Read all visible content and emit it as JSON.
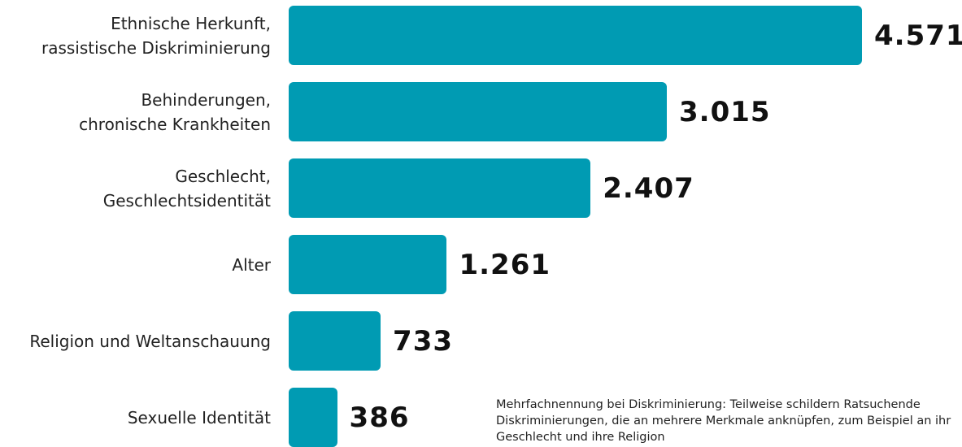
{
  "chart_data": {
    "type": "bar",
    "orientation": "horizontal",
    "categories": [
      "Ethnische Herkunft,\nrassistische Diskriminierung",
      "Behinderungen,\nchronische Krankheiten",
      "Geschlecht,\nGeschlechtsidentität",
      "Alter",
      "Religion und Weltanschauung",
      "Sexuelle Identität"
    ],
    "values": [
      4571,
      3015,
      2407,
      1261,
      733,
      386
    ],
    "value_labels": [
      "4.571",
      "3.015",
      "2.407",
      "1.261",
      "733",
      "386"
    ],
    "color": "#009bb3",
    "note": "Mehrfachnennung bei Diskriminierung: Teilweise schildern Ratsuchende Diskriminierungen, die an mehrere Merkmale anknüpfen, zum Beispiel an ihr Geschlecht und ihre Religion"
  }
}
